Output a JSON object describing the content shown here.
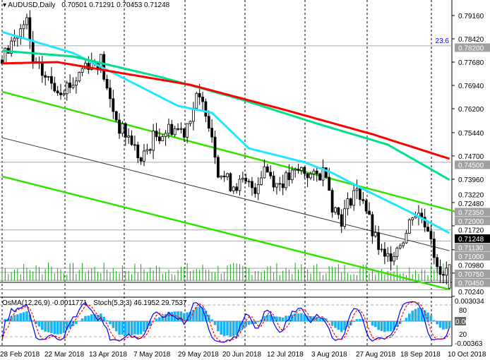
{
  "header": {
    "symbol": "AUDUSD,Daily",
    "ohlc": "0.70501 0.71291 0.70453 0.71248"
  },
  "subwindow": {
    "osma_label": "OsMA(12,26,9) -0.0011771",
    "stoch_label": "Stoch(5,3,3) 46.1952 29.7537"
  },
  "colors": {
    "ma_fast": "#22e6ff",
    "ma_mid": "#00e08a",
    "ma_slow": "#ff0000",
    "channel": "#33e000",
    "histogram": "#1ab2f0",
    "stoch_main": "#0000ee",
    "stoch_signal": "#ff0000",
    "level_label_bg": "#a0a0a0"
  },
  "chart_data": {
    "type": "candlestick",
    "title": "AUDUSD,Daily",
    "ylim": [
      0.7024,
      0.7953
    ],
    "y_ticks": [
      "0.79160",
      "0.78420",
      "0.77680",
      "0.76940",
      "0.76200",
      "0.75440",
      "0.74700",
      "0.73960",
      "0.73220",
      "0.72480",
      "0.71720",
      "0.70980",
      "0.70240"
    ],
    "x_labels": [
      "28 Feb 2018",
      "22 Mar 2018",
      "13 Apr 2018",
      "7 May 2018",
      "29 May 2018",
      "20 Jun 2018",
      "12 Jul 2018",
      "3 Aug 2018",
      "27 Aug 2018",
      "18 Sep 2018",
      "10 Oct 2018"
    ],
    "bars": 146,
    "close_path": [
      [
        0,
        0.7775
      ],
      [
        3,
        0.783
      ],
      [
        8,
        0.789
      ],
      [
        10,
        0.7764
      ],
      [
        14,
        0.772
      ],
      [
        18,
        0.7685
      ],
      [
        23,
        0.77
      ],
      [
        27,
        0.7764
      ],
      [
        32,
        0.7775
      ],
      [
        34,
        0.7674
      ],
      [
        38,
        0.756
      ],
      [
        42,
        0.7517
      ],
      [
        45,
        0.745
      ],
      [
        49,
        0.7528
      ],
      [
        55,
        0.756
      ],
      [
        59,
        0.755
      ],
      [
        63,
        0.765
      ],
      [
        66,
        0.762
      ],
      [
        68,
        0.754
      ],
      [
        70,
        0.7427
      ],
      [
        74,
        0.738
      ],
      [
        78,
        0.738
      ],
      [
        82,
        0.737
      ],
      [
        85,
        0.7438
      ],
      [
        89,
        0.738
      ],
      [
        93,
        0.74
      ],
      [
        97,
        0.7427
      ],
      [
        101,
        0.74
      ],
      [
        105,
        0.7427
      ],
      [
        107,
        0.7315
      ],
      [
        110,
        0.727
      ],
      [
        114,
        0.736
      ],
      [
        117,
        0.7338
      ],
      [
        120,
        0.7225
      ],
      [
        124,
        0.7136
      ],
      [
        127,
        0.717
      ],
      [
        131,
        0.7225
      ],
      [
        133,
        0.729
      ],
      [
        136,
        0.728
      ],
      [
        139,
        0.7225
      ],
      [
        141,
        0.71
      ],
      [
        143,
        0.708
      ],
      [
        145,
        0.71248
      ]
    ],
    "ma_fast": [
      [
        0,
        0.7864
      ],
      [
        23,
        0.7797
      ],
      [
        39,
        0.7719
      ],
      [
        57,
        0.7629
      ],
      [
        68,
        0.7607
      ],
      [
        80,
        0.7494
      ],
      [
        98,
        0.745
      ],
      [
        107,
        0.7416
      ],
      [
        118,
        0.736
      ],
      [
        132,
        0.7293
      ],
      [
        145,
        0.7225
      ]
    ],
    "ma_mid": [
      [
        0,
        0.7804
      ],
      [
        23,
        0.7786
      ],
      [
        52,
        0.7719
      ],
      [
        77,
        0.7651
      ],
      [
        102,
        0.7573
      ],
      [
        125,
        0.7506
      ],
      [
        145,
        0.7394
      ]
    ],
    "ma_slow": [
      [
        0,
        0.7764
      ],
      [
        18,
        0.7768
      ],
      [
        34,
        0.7741
      ],
      [
        61,
        0.7696
      ],
      [
        91,
        0.7618
      ],
      [
        120,
        0.7539
      ],
      [
        145,
        0.7461
      ]
    ],
    "channel_upper": [
      [
        0,
        0.7674
      ],
      [
        147,
        0.7293
      ]
    ],
    "channel_mid": [
      [
        0,
        0.7528
      ],
      [
        145,
        0.7169
      ]
    ],
    "channel_lower": [
      [
        0,
        0.7405
      ],
      [
        145,
        0.7046
      ]
    ],
    "levels": [
      {
        "price": 0.782,
        "label": "0.78200",
        "fib": "23.6"
      },
      {
        "price": 0.745,
        "label": "0.74500"
      },
      {
        "price": 0.7235,
        "label": "0.72350"
      },
      {
        "price": 0.72,
        "label": "0.72000"
      },
      {
        "price": 0.7113,
        "label": "0.71130"
      },
      {
        "price": 0.71,
        "label": "0.71000"
      },
      {
        "price": 0.7075,
        "label": "0.70750"
      },
      {
        "price": 0.7045,
        "label": "0.70450"
      }
    ],
    "current_price": "0.71248",
    "sub_ticks": {
      "top": "0.003034",
      "level80": "80",
      "zero": "0.00",
      "level20": "20",
      "bottom": "-0.00363"
    }
  }
}
